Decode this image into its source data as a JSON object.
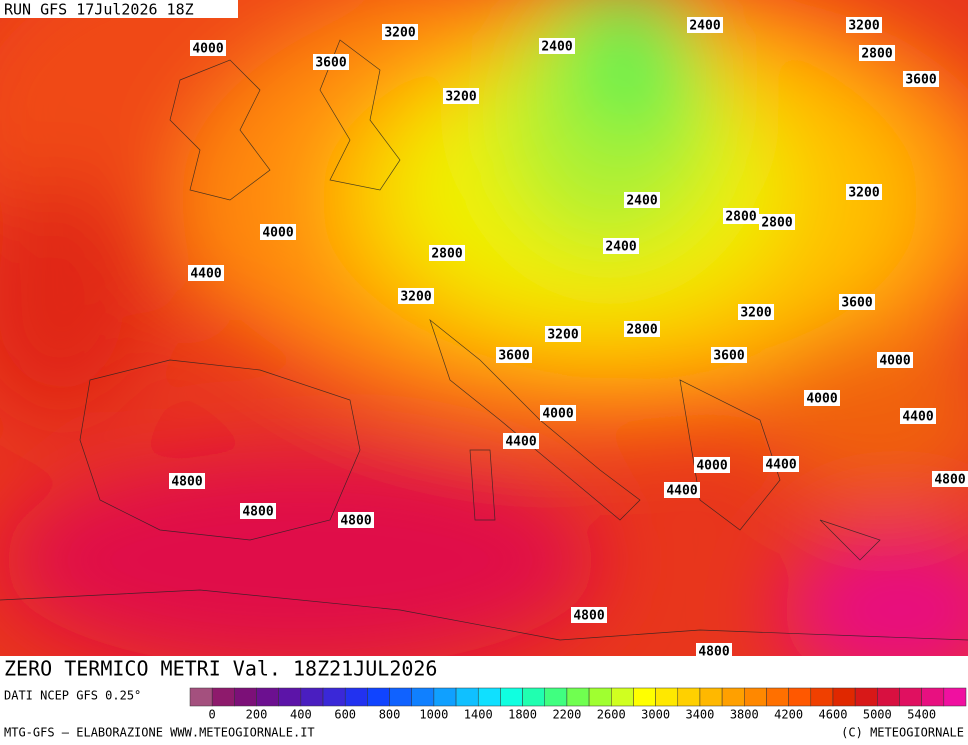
{
  "header": {
    "run": "RUN GFS 17Jul2026 18Z"
  },
  "title": "ZERO TERMICO METRI Val. 18Z21JUL2026",
  "source": "DATI NCEP GFS 0.25°",
  "footer": {
    "left": "MTG-GFS — ELABORAZIONE WWW.METEOGIORNALE.IT",
    "right": "(C) METEOGIORNALE"
  },
  "colorbar": {
    "labels": [
      0,
      200,
      400,
      600,
      800,
      1000,
      1400,
      1800,
      2200,
      2600,
      3000,
      3400,
      3800,
      4200,
      4600,
      5000,
      5400
    ],
    "colors": [
      "#a4507e",
      "#8e1a6c",
      "#7c1078",
      "#6c1090",
      "#5c14a8",
      "#4a1ec0",
      "#3a28d8",
      "#2232f0",
      "#1044ff",
      "#1062ff",
      "#1080ff",
      "#10a0ff",
      "#10c0ff",
      "#10e0ff",
      "#10ffe0",
      "#20ffb0",
      "#40ff80",
      "#70ff50",
      "#a0ff30",
      "#d0ff20",
      "#ffff00",
      "#ffe800",
      "#ffd000",
      "#ffb800",
      "#ffa000",
      "#ff8800",
      "#ff7000",
      "#ff5800",
      "#f04000",
      "#e02800",
      "#d81818",
      "#d81040",
      "#e01060",
      "#e81080",
      "#f010a0"
    ]
  },
  "contour_labels": [
    3200,
    2400,
    2400,
    3200,
    4000,
    3600,
    2800,
    3600,
    3200,
    3200,
    2400,
    2800,
    2800,
    4000,
    2800,
    2400,
    4400,
    3200,
    3600,
    3200,
    2800,
    3200,
    3600,
    3600,
    4000,
    4000,
    4000,
    4400,
    4400,
    4000,
    4400,
    4800,
    4400,
    4800,
    4800,
    4800,
    4800,
    4800
  ]
}
